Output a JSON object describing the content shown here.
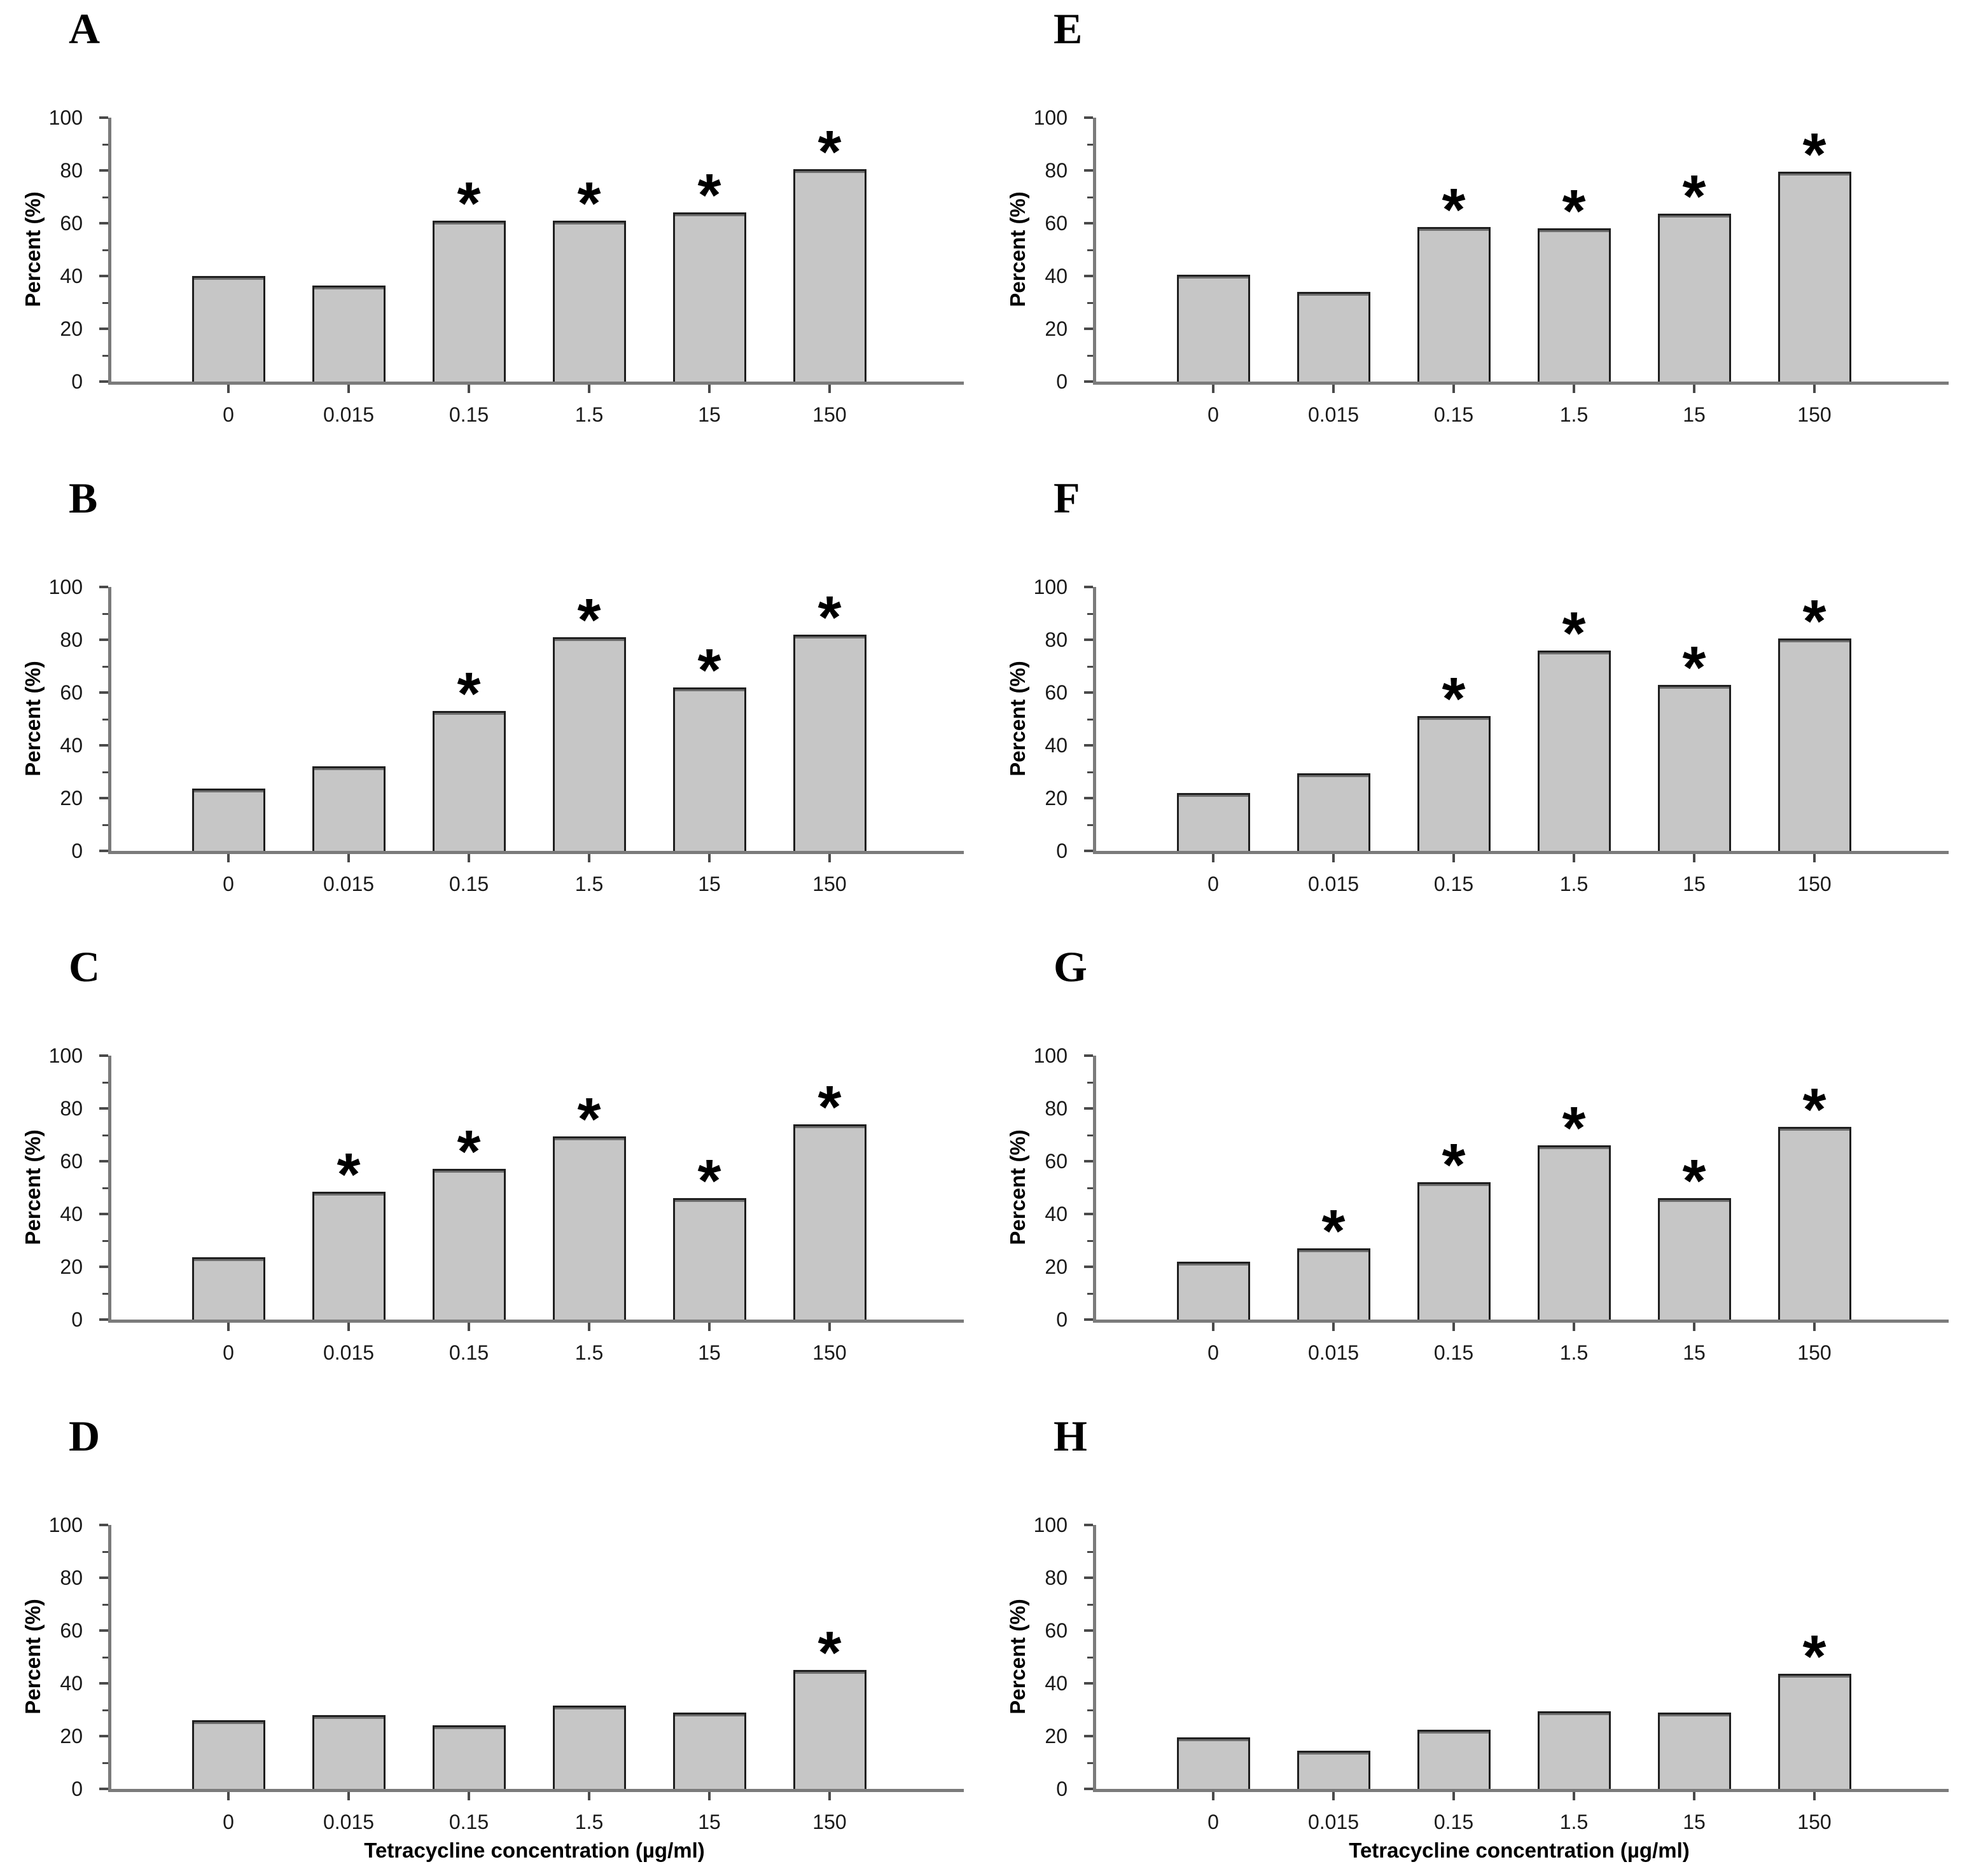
{
  "figure": {
    "background_color": "#ffffff",
    "bar_fill_color": "#c6c6c6",
    "bar_border_color": "#1f1f1f",
    "axis_color": "#7b7b7b",
    "significance_marker": "*"
  },
  "chart_data": {
    "type": "bar",
    "title": "",
    "categories": [
      "0",
      "0.015",
      "0.15",
      "1.5",
      "15",
      "150"
    ],
    "xlabel": "Tetracycline concentration (µg/ml)",
    "ylabel": "Percent (%)",
    "ylim": [
      0,
      100
    ],
    "yticks": [
      0,
      20,
      40,
      60,
      80,
      100
    ],
    "grid": "off",
    "legend": "none",
    "panels": [
      {
        "letter": "A",
        "column": "left",
        "row": 0,
        "has_xlabel": false,
        "values": [
          40,
          36.5,
          61,
          61,
          64,
          80.5
        ],
        "significant": [
          false,
          false,
          true,
          true,
          true,
          true
        ]
      },
      {
        "letter": "B",
        "column": "left",
        "row": 1,
        "has_xlabel": false,
        "values": [
          23.5,
          32,
          53,
          81,
          62,
          82
        ],
        "significant": [
          false,
          false,
          true,
          true,
          true,
          true
        ]
      },
      {
        "letter": "C",
        "column": "left",
        "row": 2,
        "has_xlabel": false,
        "values": [
          23.5,
          48.5,
          57,
          69.5,
          46,
          74
        ],
        "significant": [
          false,
          true,
          true,
          true,
          true,
          true
        ]
      },
      {
        "letter": "D",
        "column": "left",
        "row": 3,
        "has_xlabel": true,
        "values": [
          26,
          28,
          24,
          31.5,
          29,
          45
        ],
        "significant": [
          false,
          false,
          false,
          false,
          false,
          true
        ]
      },
      {
        "letter": "E",
        "column": "right",
        "row": 0,
        "has_xlabel": false,
        "values": [
          40.5,
          34,
          58.5,
          58,
          63.5,
          79.5
        ],
        "significant": [
          false,
          false,
          true,
          true,
          true,
          true
        ]
      },
      {
        "letter": "F",
        "column": "right",
        "row": 1,
        "has_xlabel": false,
        "values": [
          22,
          29.5,
          51,
          76,
          63,
          80.5
        ],
        "significant": [
          false,
          false,
          true,
          true,
          true,
          true
        ]
      },
      {
        "letter": "G",
        "column": "right",
        "row": 2,
        "has_xlabel": false,
        "values": [
          22,
          27,
          52,
          66,
          46,
          73
        ],
        "significant": [
          false,
          true,
          true,
          true,
          true,
          true
        ]
      },
      {
        "letter": "H",
        "column": "right",
        "row": 3,
        "has_xlabel": true,
        "values": [
          19.5,
          14.5,
          22.5,
          29.5,
          29,
          43.5
        ],
        "significant": [
          false,
          false,
          false,
          false,
          false,
          true
        ]
      }
    ]
  }
}
